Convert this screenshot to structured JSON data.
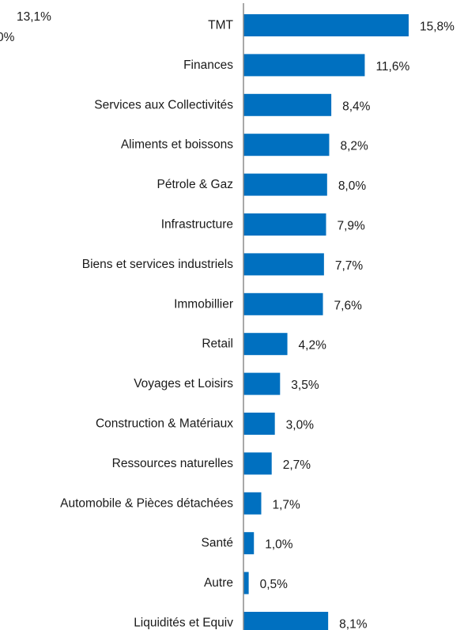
{
  "chart_data": {
    "type": "bar",
    "orientation": "horizontal",
    "title": "",
    "xlabel": "",
    "ylabel": "",
    "grid": false,
    "legend": "none",
    "bar_color": "#0070C0",
    "axis_color": "#8c8c8c",
    "categories": [
      "TMT",
      "Finances",
      "Services aux Collectivités",
      "Aliments et boissons",
      "Pétrole & Gaz",
      "Infrastructure",
      "Biens et services industriels",
      "Immobillier",
      "Retail",
      "Voyages et Loisirs",
      "Construction & Matériaux",
      "Ressources naturelles",
      "Automobile & Pièces détachées",
      "Santé",
      "Autre",
      "Liquidités et Equiv"
    ],
    "values": [
      15.8,
      11.6,
      8.4,
      8.2,
      8.0,
      7.9,
      7.7,
      7.6,
      4.2,
      3.5,
      3.0,
      2.7,
      1.7,
      1.0,
      0.5,
      8.1
    ],
    "value_labels": [
      "15,8%",
      "11,6%",
      "8,4%",
      "8,2%",
      "8,0%",
      "7,9%",
      "7,7%",
      "7,6%",
      "4,2%",
      "3,5%",
      "3,0%",
      "2,7%",
      "1,7%",
      "1,0%",
      "0,5%",
      "8,1%"
    ],
    "xlim": [
      0,
      15.8
    ],
    "annotations": [
      "13,1%",
      "0%"
    ]
  }
}
